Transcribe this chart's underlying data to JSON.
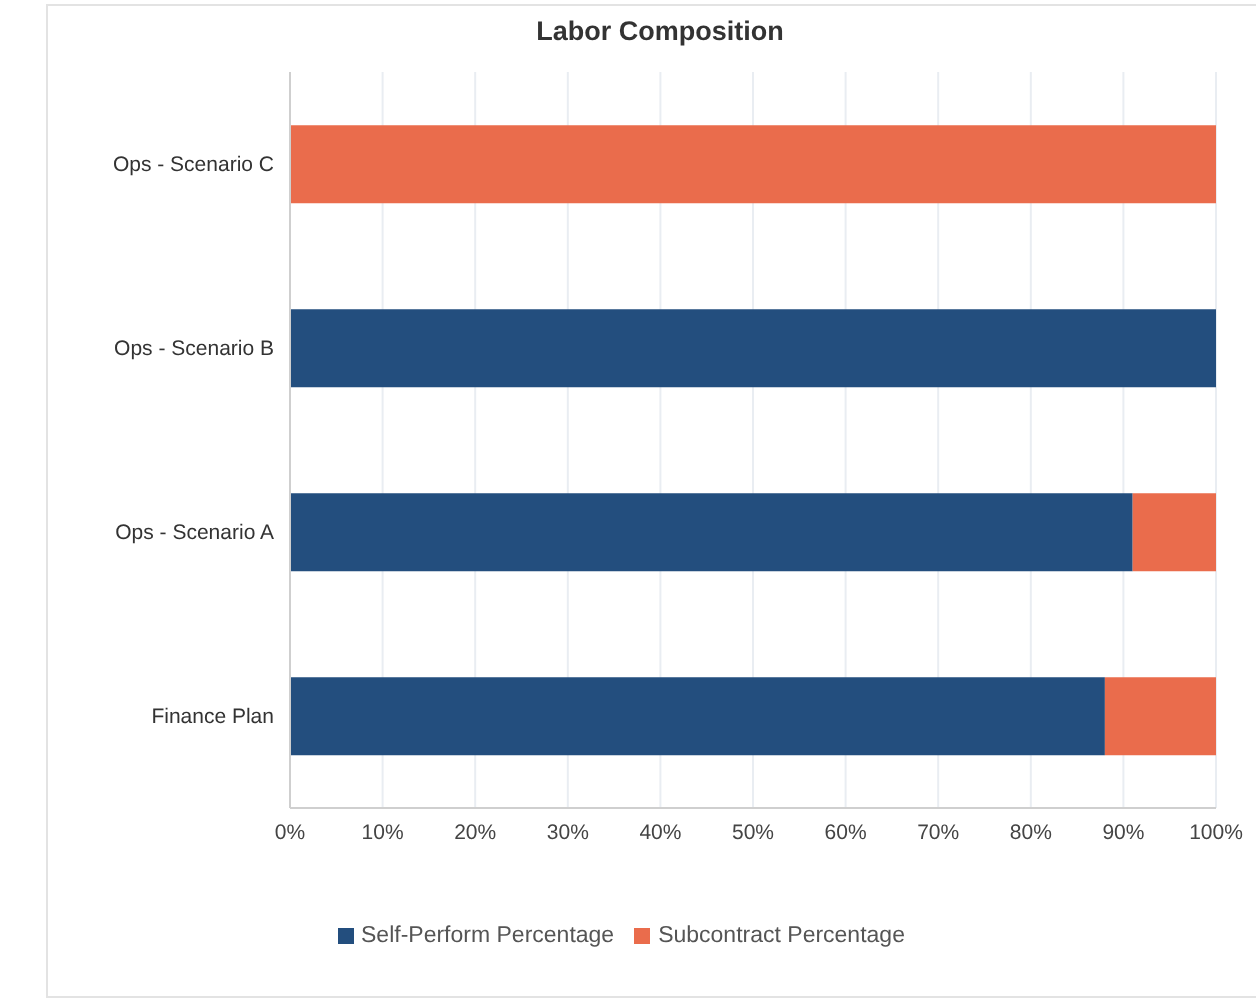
{
  "chart_data": {
    "type": "bar",
    "orientation": "horizontal",
    "stacked": true,
    "title": "Labor Composition",
    "categories": [
      "Ops - Scenario C",
      "Ops - Scenario B",
      "Ops - Scenario A",
      "Finance Plan"
    ],
    "series": [
      {
        "name": "Self-Perform Percentage",
        "color": "#234e7e",
        "values": [
          0,
          100,
          91,
          88
        ]
      },
      {
        "name": "Subcontract Percentage",
        "color": "#ea6c4c",
        "values": [
          100,
          0,
          9,
          12
        ]
      }
    ],
    "xlim": [
      0,
      100
    ],
    "xticks": [
      {
        "value": 0,
        "label": "0%"
      },
      {
        "value": 10,
        "label": "10%"
      },
      {
        "value": 20,
        "label": "20%"
      },
      {
        "value": 30,
        "label": "30%"
      },
      {
        "value": 40,
        "label": "40%"
      },
      {
        "value": 50,
        "label": "50%"
      },
      {
        "value": 60,
        "label": "60%"
      },
      {
        "value": 70,
        "label": "70%"
      },
      {
        "value": 80,
        "label": "80%"
      },
      {
        "value": 90,
        "label": "90%"
      },
      {
        "value": 100,
        "label": "100%"
      }
    ],
    "grid": "x",
    "legend": "bottom"
  }
}
